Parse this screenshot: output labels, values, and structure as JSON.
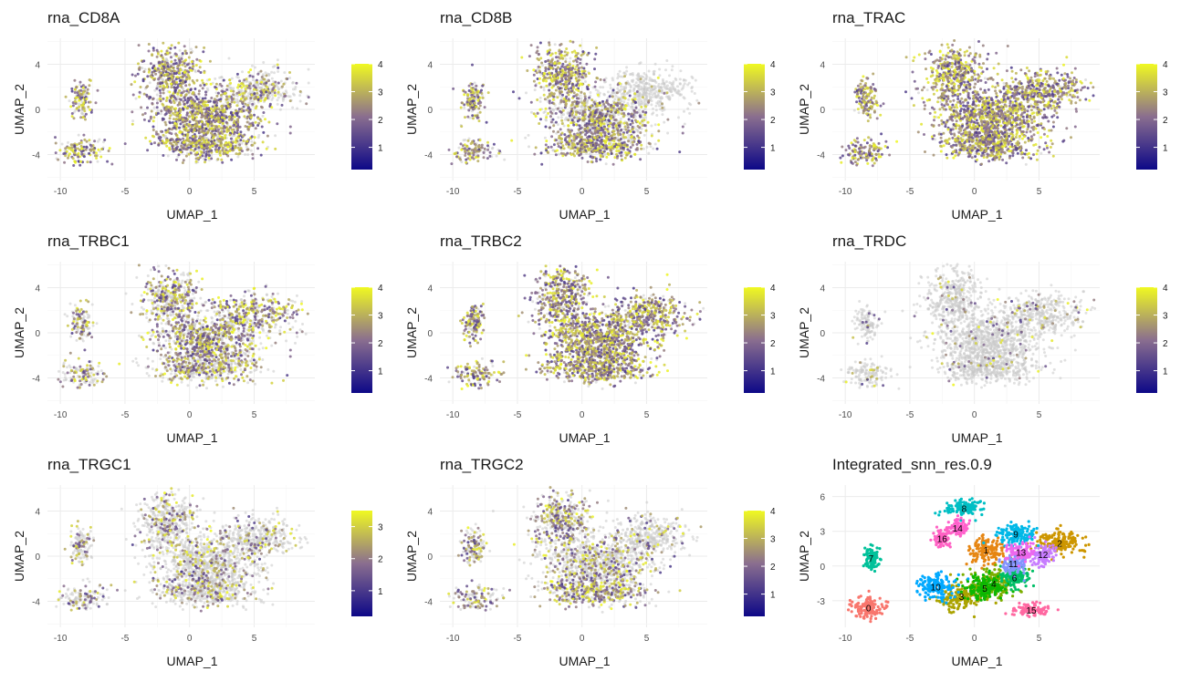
{
  "panels": [
    {
      "title": "rna_CD8A",
      "type": "feature",
      "legend_max": 4,
      "legend_ticks": [
        1,
        2,
        3,
        4
      ],
      "expr": {
        "left": 0.75,
        "main": 0.9,
        "upper_left": 0.85,
        "upper_right": 0.35,
        "lower_band": 0.7
      },
      "xlabel": "UMAP_1",
      "ylabel": "UMAP_2"
    },
    {
      "title": "rna_CD8B",
      "type": "feature",
      "legend_max": 4,
      "legend_ticks": [
        1,
        2,
        3,
        4
      ],
      "expr": {
        "left": 0.75,
        "main": 0.55,
        "upper_left": 0.9,
        "upper_right": 0.02,
        "lower_band": 0.8
      },
      "xlabel": "UMAP_1",
      "ylabel": "UMAP_2"
    },
    {
      "title": "rna_TRAC",
      "type": "feature",
      "legend_max": 4,
      "legend_ticks": [
        1,
        2,
        3,
        4
      ],
      "expr": {
        "left": 0.95,
        "main": 0.98,
        "upper_left": 0.95,
        "upper_right": 0.95,
        "lower_band": 0.95
      },
      "xlabel": "UMAP_1",
      "ylabel": "UMAP_2"
    },
    {
      "title": "rna_TRBC1",
      "type": "feature",
      "legend_max": 4,
      "legend_ticks": [
        1,
        2,
        3,
        4
      ],
      "expr": {
        "left": 0.45,
        "main": 0.55,
        "upper_left": 0.55,
        "upper_right": 0.6,
        "lower_band": 0.4
      },
      "xlabel": "UMAP_1",
      "ylabel": "UMAP_2"
    },
    {
      "title": "rna_TRBC2",
      "type": "feature",
      "legend_max": 4,
      "legend_ticks": [
        1,
        2,
        3,
        4
      ],
      "expr": {
        "left": 0.8,
        "main": 0.95,
        "upper_left": 0.9,
        "upper_right": 0.9,
        "lower_band": 0.85
      },
      "xlabel": "UMAP_1",
      "ylabel": "UMAP_2"
    },
    {
      "title": "rna_TRDC",
      "type": "feature",
      "legend_max": 4,
      "legend_ticks": [
        1,
        2,
        3,
        4
      ],
      "expr": {
        "left": 0.08,
        "main": 0.05,
        "upper_left": 0.06,
        "upper_right": 0.12,
        "lower_band": 0.04
      },
      "xlabel": "UMAP_1",
      "ylabel": "UMAP_2"
    },
    {
      "title": "rna_TRGC1",
      "type": "feature",
      "legend_max": 3.5,
      "legend_ticks": [
        1,
        2,
        3
      ],
      "expr": {
        "left": 0.35,
        "main": 0.22,
        "upper_left": 0.25,
        "upper_right": 0.2,
        "lower_band": 0.25
      },
      "xlabel": "UMAP_1",
      "ylabel": "UMAP_2"
    },
    {
      "title": "rna_TRGC2",
      "type": "feature",
      "legend_max": 4,
      "legend_ticks": [
        1,
        2,
        3,
        4
      ],
      "expr": {
        "left": 0.55,
        "main": 0.3,
        "upper_left": 0.5,
        "upper_right": 0.12,
        "lower_band": 0.6
      },
      "xlabel": "UMAP_1",
      "ylabel": "UMAP_2"
    },
    {
      "title": "Integrated_snn_res.0.9",
      "type": "cluster",
      "xlabel": "UMAP_1",
      "ylabel": "UMAP_2"
    }
  ],
  "chart_data": {
    "type": "scatter",
    "x_axis": {
      "label": "UMAP_1",
      "ticks": [
        -10,
        -5,
        0,
        5
      ]
    },
    "y_axis_feature": {
      "label": "UMAP_2",
      "ticks": [
        -4,
        0,
        4
      ]
    },
    "y_axis_cluster": {
      "label": "UMAP_2",
      "ticks": [
        -3,
        0,
        3,
        6
      ]
    },
    "colormap": {
      "low": "#0d0887",
      "mid": "#8a6e8f",
      "high": "#f0f921",
      "na": "#c8c8c8"
    },
    "clusters": [
      {
        "id": "0",
        "x": -8.2,
        "y": -3.6,
        "sx": 1.1,
        "sy": 0.9,
        "color": "#f8766d"
      },
      {
        "id": "1",
        "x": 0.9,
        "y": 1.4,
        "sx": 1.2,
        "sy": 1.0,
        "color": "#e68613"
      },
      {
        "id": "2",
        "x": 6.6,
        "y": 2.0,
        "sx": 1.5,
        "sy": 1.0,
        "color": "#cd9600"
      },
      {
        "id": "3",
        "x": -1.0,
        "y": -2.6,
        "sx": 1.6,
        "sy": 1.0,
        "color": "#aba300"
      },
      {
        "id": "4",
        "x": 1.5,
        "y": -1.5,
        "sx": 1.3,
        "sy": 1.1,
        "color": "#7cae00"
      },
      {
        "id": "5",
        "x": 0.8,
        "y": -1.9,
        "sx": 1.3,
        "sy": 1.0,
        "color": "#0cb702"
      },
      {
        "id": "6",
        "x": 3.1,
        "y": -1.0,
        "sx": 1.0,
        "sy": 0.9,
        "color": "#00be67"
      },
      {
        "id": "7",
        "x": -8.0,
        "y": 0.7,
        "sx": 0.5,
        "sy": 1.0,
        "color": "#00c19a"
      },
      {
        "id": "8",
        "x": -0.8,
        "y": 5.0,
        "sx": 1.2,
        "sy": 0.7,
        "color": "#00bfc4"
      },
      {
        "id": "9",
        "x": 3.2,
        "y": 2.8,
        "sx": 1.4,
        "sy": 0.8,
        "color": "#00b8e7"
      },
      {
        "id": "10",
        "x": -3.0,
        "y": -1.8,
        "sx": 1.3,
        "sy": 1.0,
        "color": "#00a9ff"
      },
      {
        "id": "11",
        "x": 3.0,
        "y": 0.2,
        "sx": 0.9,
        "sy": 0.8,
        "color": "#8494ff"
      },
      {
        "id": "12",
        "x": 5.3,
        "y": 1.0,
        "sx": 0.9,
        "sy": 0.8,
        "color": "#c77cff"
      },
      {
        "id": "13",
        "x": 3.6,
        "y": 1.2,
        "sx": 0.9,
        "sy": 0.7,
        "color": "#ed68ed"
      },
      {
        "id": "14",
        "x": -1.3,
        "y": 3.3,
        "sx": 0.7,
        "sy": 0.7,
        "color": "#ff61cc"
      },
      {
        "id": "15",
        "x": 4.4,
        "y": -3.8,
        "sx": 1.2,
        "sy": 0.5,
        "color": "#ff68a1"
      },
      {
        "id": "16",
        "x": -2.5,
        "y": 2.4,
        "sx": 0.6,
        "sy": 0.7,
        "color": "#ff61c3"
      }
    ]
  }
}
